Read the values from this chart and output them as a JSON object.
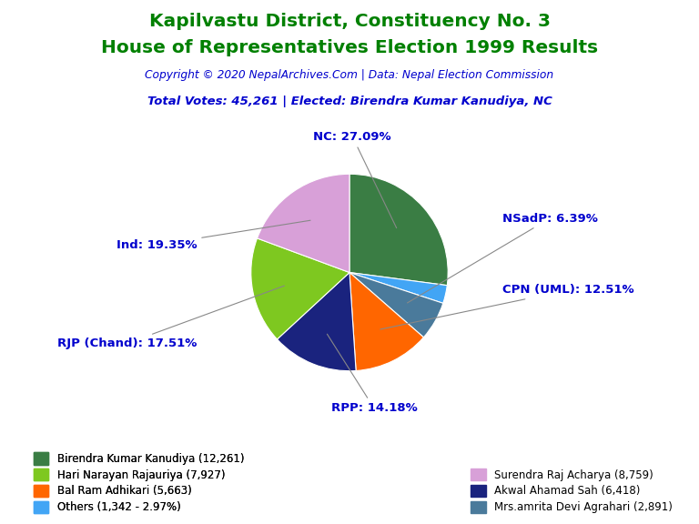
{
  "title_line1": "Kapilvastu District, Constituency No. 3",
  "title_line2": "House of Representatives Election 1999 Results",
  "title_color": "#008000",
  "copyright_text": "Copyright © 2020 NepalArchives.Com | Data: Nepal Election Commission",
  "copyright_color": "#0000CD",
  "subtitle_text": "Total Votes: 45,261 | Elected: Birendra Kumar Kanudiya, NC",
  "subtitle_color": "#0000CD",
  "slices": [
    {
      "label": "NC: 27.09%",
      "value": 12261,
      "color": "#3a7d44",
      "legend": "Birendra Kumar Kanudiya (12,261)"
    },
    {
      "label": "",
      "value": 1342,
      "color": "#42a5f5",
      "legend": "Others (1,342 - 2.97%)"
    },
    {
      "label": "NSadP: 6.39%",
      "value": 2891,
      "color": "#4a7a9b",
      "legend": "Mrs.amrita Devi Agrahari (2,891)"
    },
    {
      "label": "CPN (UML): 12.51%",
      "value": 5663,
      "color": "#ff6600",
      "legend": "Bal Ram Adhikari (5,663)"
    },
    {
      "label": "RPP: 14.18%",
      "value": 6418,
      "color": "#1a237e",
      "legend": "Akwal Ahamad Sah (6,418)"
    },
    {
      "label": "RJP (Chand): 17.51%",
      "value": 7927,
      "color": "#7ec820",
      "legend": "Hari Narayan Rajauriya (7,927)"
    },
    {
      "label": "Ind: 19.35%",
      "value": 8759,
      "color": "#d8a0d8",
      "legend": "Surendra Raj Acharya (8,759)"
    }
  ],
  "legend_left": [
    {
      "color": "#3a7d44",
      "text": "Birendra Kumar Kanudiya (12,261)"
    },
    {
      "color": "#7ec820",
      "text": "Hari Narayan Rajauriya (7,927)"
    },
    {
      "color": "#ff6600",
      "text": "Bal Ram Adhikari (5,663)"
    },
    {
      "color": "#42a5f5",
      "text": "Others (1,342 - 2.97%)"
    }
  ],
  "legend_right": [
    {
      "color": "#d8a0d8",
      "text": "Surendra Raj Acharya (8,759)"
    },
    {
      "color": "#1a237e",
      "text": "Akwal Ahamad Sah (6,418)"
    },
    {
      "color": "#4a7a9b",
      "text": "Mrs.amrita Devi Agrahari (2,891)"
    }
  ],
  "label_color": "#0000CD",
  "background_color": "#ffffff",
  "label_configs": [
    {
      "idx": 0,
      "label": "NC: 27.09%",
      "xt": 0.03,
      "yt": 1.38,
      "ha": "center"
    },
    {
      "idx": 1,
      "label": "",
      "xt": 0,
      "yt": 0,
      "ha": "center"
    },
    {
      "idx": 2,
      "label": "NSadP: 6.39%",
      "xt": 1.55,
      "yt": 0.55,
      "ha": "left"
    },
    {
      "idx": 3,
      "label": "CPN (UML): 12.51%",
      "xt": 1.55,
      "yt": -0.18,
      "ha": "left"
    },
    {
      "idx": 4,
      "label": "RPP: 14.18%",
      "xt": 0.25,
      "yt": -1.38,
      "ha": "center"
    },
    {
      "idx": 5,
      "label": "RJP (Chand): 17.51%",
      "xt": -1.55,
      "yt": -0.72,
      "ha": "right"
    },
    {
      "idx": 6,
      "label": "Ind: 19.35%",
      "xt": -1.55,
      "yt": 0.28,
      "ha": "right"
    }
  ]
}
